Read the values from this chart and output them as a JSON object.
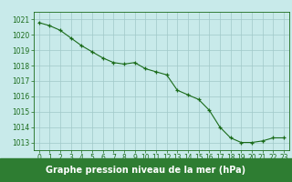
{
  "x": [
    0,
    1,
    2,
    3,
    4,
    5,
    6,
    7,
    8,
    9,
    10,
    11,
    12,
    13,
    14,
    15,
    16,
    17,
    18,
    19,
    20,
    21,
    22,
    23
  ],
  "y": [
    1020.8,
    1020.6,
    1020.3,
    1019.8,
    1019.3,
    1018.9,
    1018.5,
    1018.2,
    1018.1,
    1018.2,
    1017.8,
    1017.6,
    1017.4,
    1016.4,
    1016.1,
    1015.8,
    1015.1,
    1014.0,
    1013.3,
    1013.0,
    1013.0,
    1013.1,
    1013.3,
    1013.3
  ],
  "ylim": [
    1012.5,
    1021.5
  ],
  "xlim": [
    -0.5,
    23.5
  ],
  "yticks": [
    1013,
    1014,
    1015,
    1016,
    1017,
    1018,
    1019,
    1020,
    1021
  ],
  "xticks": [
    0,
    1,
    2,
    3,
    4,
    5,
    6,
    7,
    8,
    9,
    10,
    11,
    12,
    13,
    14,
    15,
    16,
    17,
    18,
    19,
    20,
    21,
    22,
    23
  ],
  "line_color": "#1a6b1a",
  "marker_color": "#1a6b1a",
  "bg_color": "#c8eaea",
  "grid_color": "#a0c8c8",
  "xlabel": "Graphe pression niveau de la mer (hPa)",
  "xlabel_fontsize": 7.0,
  "tick_fontsize": 5.5,
  "tick_color": "#1a6b1a",
  "spine_color": "#1a6b1a",
  "label_bar_color": "#2e7d32",
  "label_text_color": "#ffffff",
  "marker_size": 3.0,
  "line_width": 0.8
}
